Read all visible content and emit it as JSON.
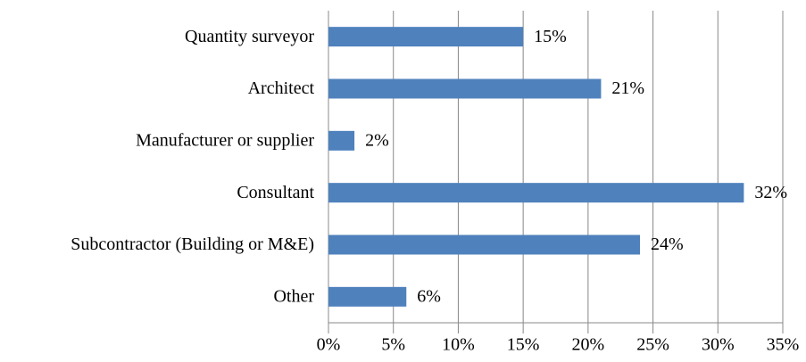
{
  "chart_data": {
    "type": "bar",
    "orientation": "horizontal",
    "categories": [
      "Quantity surveyor",
      "Architect",
      "Manufacturer or supplier",
      "Consultant",
      "Subcontractor (Building or M&E)",
      "Other"
    ],
    "values": [
      15,
      21,
      2,
      32,
      24,
      6
    ],
    "value_labels": [
      "15%",
      "21%",
      "2%",
      "32%",
      "24%",
      "6%"
    ],
    "color": "#4f81bd",
    "xlim": [
      0,
      35
    ],
    "xticks": [
      {
        "value": 0,
        "label": "0%"
      },
      {
        "value": 5,
        "label": "5%"
      },
      {
        "value": 10,
        "label": "10%"
      },
      {
        "value": 15,
        "label": "15%"
      },
      {
        "value": 20,
        "label": "20%"
      },
      {
        "value": 25,
        "label": "25%"
      },
      {
        "value": 30,
        "label": "30%"
      },
      {
        "value": 35,
        "label": "35%"
      }
    ],
    "grid": true
  }
}
